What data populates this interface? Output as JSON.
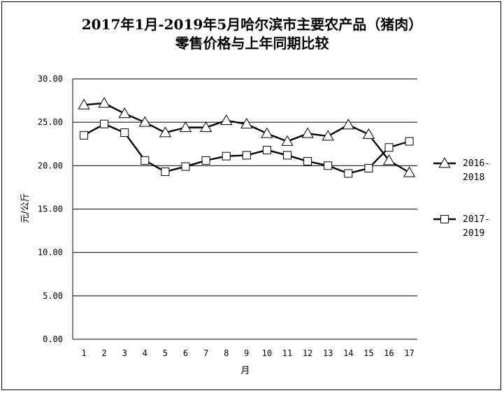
{
  "chart_data": {
    "type": "line",
    "title_line1": "2017年1月-2019年5月哈尔滨市主要农产品（猪肉）",
    "title_line2": "零售价格与上年同期比较",
    "xlabel": "月",
    "ylabel": "元/公斤",
    "ylim": [
      0,
      30
    ],
    "yticks": [
      "0.00",
      "5.00",
      "10.00",
      "15.00",
      "20.00",
      "25.00",
      "30.00"
    ],
    "categories": [
      "1",
      "2",
      "3",
      "4",
      "5",
      "6",
      "7",
      "8",
      "9",
      "10",
      "11",
      "12",
      "13",
      "14",
      "15",
      "16",
      "17"
    ],
    "grid": "horizontal",
    "legend_position": "right",
    "series": [
      {
        "name_line1": "2016-",
        "name_line2": "2018",
        "marker": "triangle",
        "values": [
          27.0,
          27.2,
          26.0,
          25.0,
          23.8,
          24.4,
          24.4,
          25.2,
          24.8,
          23.7,
          22.8,
          23.7,
          23.4,
          24.7,
          23.6,
          20.6,
          19.2
        ]
      },
      {
        "name_line1": "2017-",
        "name_line2": "2019",
        "marker": "square",
        "values": [
          23.5,
          24.8,
          23.8,
          20.6,
          19.3,
          19.9,
          20.6,
          21.1,
          21.2,
          21.8,
          21.2,
          20.5,
          20.0,
          19.1,
          19.7,
          22.1,
          22.8
        ]
      }
    ]
  }
}
